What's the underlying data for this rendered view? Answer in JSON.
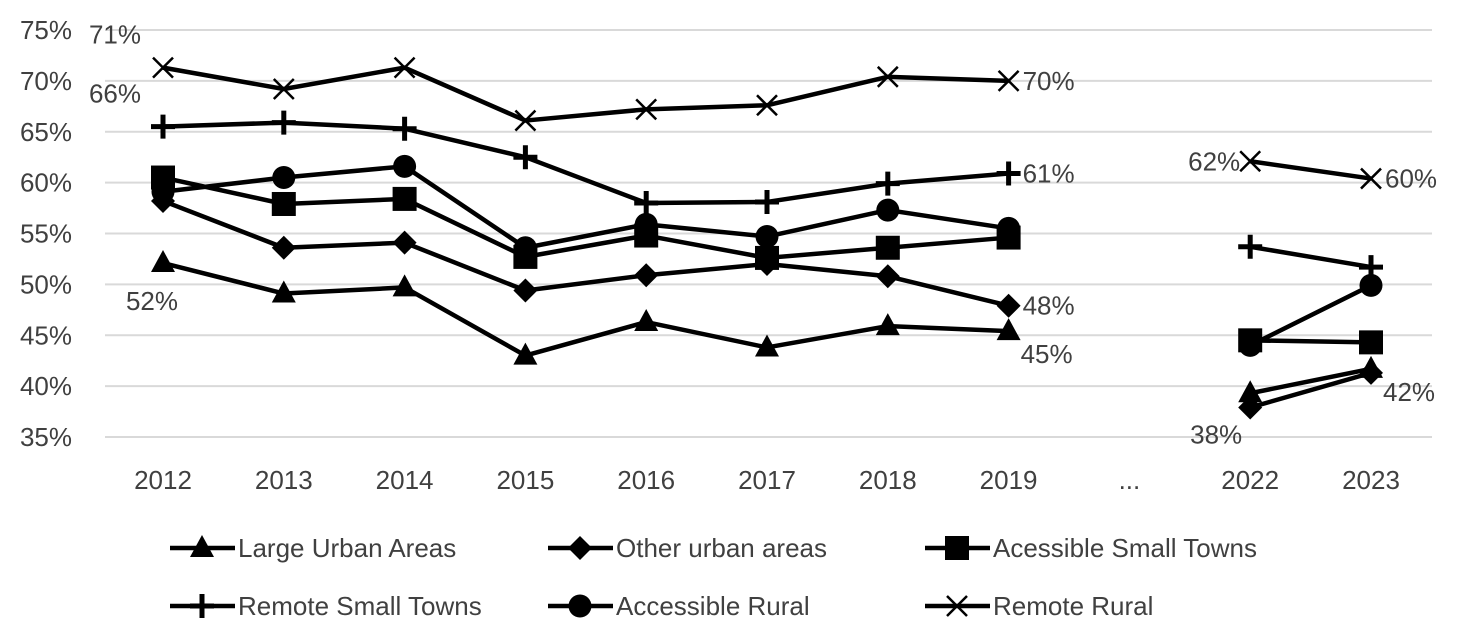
{
  "chart_data": {
    "type": "line",
    "title": "",
    "xlabel": "",
    "ylabel": "",
    "categories": [
      "2012",
      "2013",
      "2014",
      "2015",
      "2016",
      "2017",
      "2018",
      "2019",
      "...",
      "2022",
      "2023"
    ],
    "ylim": [
      35,
      75
    ],
    "yticks": [
      35,
      40,
      45,
      50,
      55,
      60,
      65,
      70,
      75
    ],
    "ytick_format": "%",
    "grid": true,
    "legend_placement": "bottom",
    "colors": {
      "series": "#000000",
      "grid": "#d9d9d9",
      "text": "#404040"
    },
    "series": [
      {
        "name": "Large Urban Areas",
        "marker": "triangle",
        "values": [
          52.1,
          49.1,
          49.7,
          43.0,
          46.3,
          43.8,
          45.9,
          45.4,
          null,
          39.3,
          41.7
        ]
      },
      {
        "name": "Other urban areas",
        "marker": "diamond",
        "values": [
          58.2,
          53.6,
          54.1,
          49.4,
          50.9,
          52.0,
          50.8,
          47.9,
          null,
          37.9,
          41.3
        ]
      },
      {
        "name": "Acessible Small Towns",
        "marker": "square",
        "values": [
          60.5,
          57.9,
          58.4,
          52.7,
          54.8,
          52.6,
          53.6,
          54.6,
          null,
          44.5,
          44.3
        ]
      },
      {
        "name": "Remote Small Towns",
        "marker": "plus",
        "values": [
          65.5,
          65.9,
          65.3,
          62.5,
          58.0,
          58.1,
          59.9,
          60.9,
          null,
          53.7,
          51.7
        ]
      },
      {
        "name": "Accessible Rural",
        "marker": "circle",
        "values": [
          59.1,
          60.5,
          61.6,
          53.6,
          55.9,
          54.7,
          57.3,
          55.5,
          null,
          44.0,
          49.9
        ]
      },
      {
        "name": "Remote Rural",
        "marker": "x",
        "values": [
          71.3,
          69.2,
          71.3,
          66.1,
          67.2,
          67.6,
          70.4,
          70.0,
          null,
          62.1,
          60.4
        ]
      }
    ],
    "data_labels": [
      {
        "series": 5,
        "point": 0,
        "text": "71%",
        "pos": "above-left"
      },
      {
        "series": 3,
        "point": 0,
        "text": "66%",
        "pos": "above-left"
      },
      {
        "series": 0,
        "point": 0,
        "text": "52%",
        "pos": "below"
      },
      {
        "series": 5,
        "point": 7,
        "text": "70%",
        "pos": "right"
      },
      {
        "series": 3,
        "point": 7,
        "text": "61%",
        "pos": "right"
      },
      {
        "series": 1,
        "point": 7,
        "text": "48%",
        "pos": "right"
      },
      {
        "series": 0,
        "point": 7,
        "text": "45%",
        "pos": "below-right"
      },
      {
        "series": 5,
        "point": 9,
        "text": "62%",
        "pos": "left"
      },
      {
        "series": 5,
        "point": 10,
        "text": "60%",
        "pos": "right"
      },
      {
        "series": 0,
        "point": 10,
        "text": "42%",
        "pos": "below-right"
      },
      {
        "series": 1,
        "point": 9,
        "text": "38%",
        "pos": "below-left"
      }
    ]
  }
}
